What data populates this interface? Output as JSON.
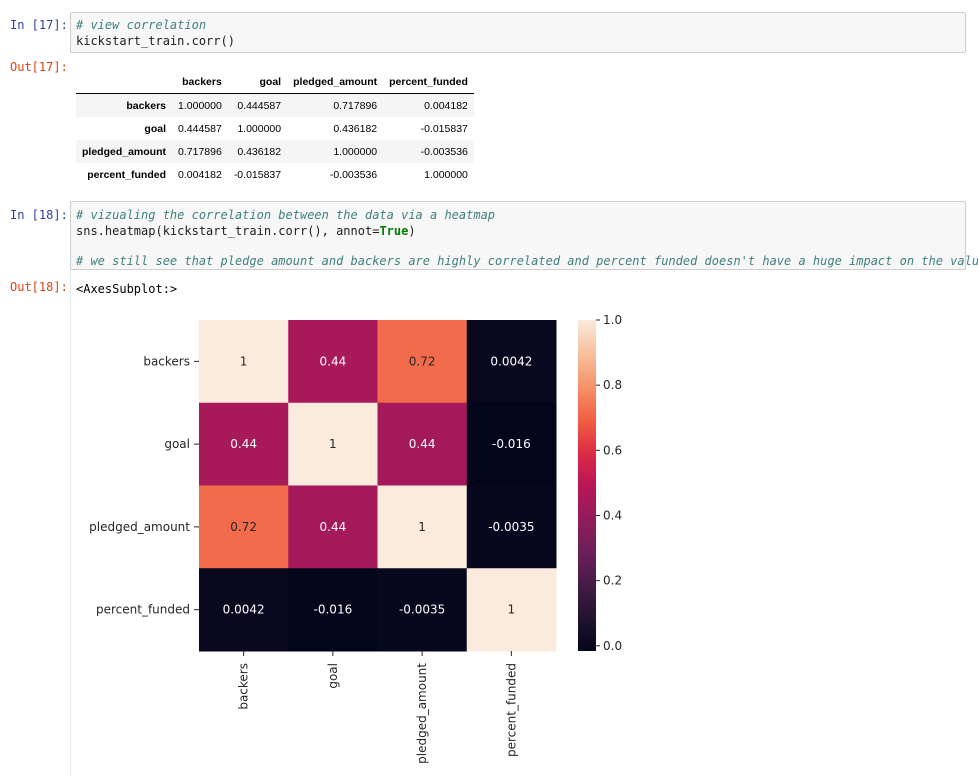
{
  "cells": [
    {
      "in_prompt": "In [17]:",
      "code_comment": "# view correlation",
      "code_line": "kickstart_train.corr()",
      "out_prompt": "Out[17]:"
    },
    {
      "in_prompt": "In [18]:",
      "code_comment": "# vizualing the correlation between the data via a heatmap",
      "code_line_prefix": "sns.heatmap(kickstart_train.corr(), annot=",
      "code_line_kw": "True",
      "code_line_suffix": ")",
      "code_comment2": "# we still see that pledge amount and backers are highly correlated and percent funded doesn't have a huge impact on the values",
      "out_prompt": "Out[18]:",
      "out_text": "<AxesSubplot:>"
    }
  ],
  "table": {
    "columns": [
      "backers",
      "goal",
      "pledged_amount",
      "percent_funded"
    ],
    "rows": [
      {
        "index": "backers",
        "values": [
          "1.000000",
          "0.444587",
          "0.717896",
          "0.004182"
        ]
      },
      {
        "index": "goal",
        "values": [
          "0.444587",
          "1.000000",
          "0.436182",
          "-0.015837"
        ]
      },
      {
        "index": "pledged_amount",
        "values": [
          "0.717896",
          "0.436182",
          "1.000000",
          "-0.003536"
        ]
      },
      {
        "index": "percent_funded",
        "values": [
          "0.004182",
          "-0.015837",
          "-0.003536",
          "1.000000"
        ]
      }
    ]
  },
  "chart_data": {
    "type": "heatmap",
    "rows": [
      "backers",
      "goal",
      "pledged_amount",
      "percent_funded"
    ],
    "columns": [
      "backers",
      "goal",
      "pledged_amount",
      "percent_funded"
    ],
    "values": [
      [
        1.0,
        0.444587,
        0.717896,
        0.004182
      ],
      [
        0.444587,
        1.0,
        0.436182,
        -0.015837
      ],
      [
        0.717896,
        0.436182,
        1.0,
        -0.003536
      ],
      [
        0.004182,
        -0.015837,
        -0.003536,
        1.0
      ]
    ],
    "annotations": [
      [
        "1",
        "0.44",
        "0.72",
        "0.0042"
      ],
      [
        "0.44",
        "1",
        "0.44",
        "-0.016"
      ],
      [
        "0.72",
        "0.44",
        "1",
        "-0.0035"
      ],
      [
        "0.0042",
        "-0.016",
        "-0.0035",
        "1"
      ]
    ],
    "colormap": "rocket",
    "colorbar": {
      "range": [
        -0.016,
        1.0
      ],
      "ticks": [
        0.0,
        0.2,
        0.4,
        0.6,
        0.8,
        1.0
      ],
      "tick_labels": [
        "0.0",
        "0.2",
        "0.4",
        "0.6",
        "0.8",
        "1.0"
      ]
    },
    "title": "",
    "xlabel": "",
    "ylabel": ""
  }
}
